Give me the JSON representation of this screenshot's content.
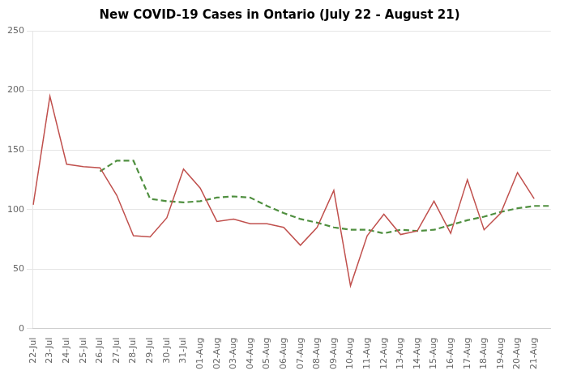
{
  "chart_data": {
    "type": "line",
    "title": "New COVID-19 Cases in Ontario (July 22 - August 21)",
    "categories": [
      "22-Jul",
      "23-Jul",
      "24-Jul",
      "25-Jul",
      "26-Jul",
      "27-Jul",
      "28-Jul",
      "29-Jul",
      "30-Jul",
      "31-Jul",
      "01-Aug",
      "02-Aug",
      "03-Aug",
      "04-Aug",
      "05-Aug",
      "06-Aug",
      "07-Aug",
      "08-Aug",
      "09-Aug",
      "10-Aug",
      "11-Aug",
      "12-Aug",
      "13-Aug",
      "14-Aug",
      "15-Aug",
      "16-Aug",
      "17-Aug",
      "18-Aug",
      "19-Aug",
      "20-Aug",
      "21-Aug",
      null
    ],
    "series": [
      {
        "color": "#C0504D",
        "line_style": "solid",
        "values": [
          104,
          195,
          138,
          136,
          135,
          112,
          78,
          77,
          93,
          134,
          118,
          90,
          92,
          88,
          88,
          85,
          70,
          85,
          116,
          36,
          78,
          96,
          79,
          82,
          107,
          80,
          125,
          83,
          97,
          131,
          109,
          null
        ]
      },
      {
        "color": "#4F8F3F",
        "line_style": "dashed",
        "values": [
          null,
          null,
          null,
          null,
          132,
          141,
          141,
          109,
          107,
          106,
          107,
          110,
          111,
          110,
          103,
          97,
          92,
          89,
          85,
          83,
          83,
          80,
          83,
          82,
          83,
          87,
          91,
          94,
          98,
          101,
          103,
          103
        ]
      }
    ],
    "ylim": [
      0,
      250
    ],
    "yticks": [
      0,
      50,
      100,
      150,
      200,
      250
    ],
    "grid": true
  }
}
